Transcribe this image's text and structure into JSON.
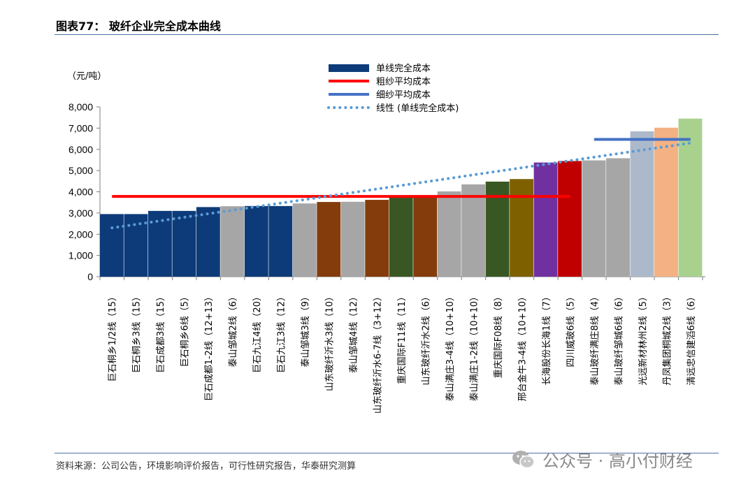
{
  "figure": {
    "title": "图表77： 玻纤企业完全成本曲线",
    "source": "资料来源：公司公告，环境影响评价报告，可行性研究报告，华泰研究测算",
    "watermark": "公众号 · 高小付财经"
  },
  "chart_data": {
    "type": "bar",
    "title": "玻纤企业完全成本曲线",
    "unit_label": "（元/吨）",
    "ylim": [
      0,
      8000
    ],
    "yticks": [
      "0",
      "1,000",
      "2,000",
      "3,000",
      "4,000",
      "5,000",
      "6,000",
      "7,000",
      "8,000"
    ],
    "legend": {
      "position": "top-center",
      "entries": [
        {
          "label": "单线完全成本",
          "style": "bar",
          "color": "#0d3b7a"
        },
        {
          "label": "粗纱平均成本",
          "style": "line",
          "color": "#ff0000"
        },
        {
          "label": "细纱平均成本",
          "style": "line",
          "color": "#4472c4"
        },
        {
          "label": "线性 (单线完全成本)",
          "style": "dotted",
          "color": "#5b9bd5"
        }
      ]
    },
    "categories": [
      "巨石桐乡1/2线（15）",
      "巨石桐乡3线（15）",
      "巨石成都3线（15）",
      "巨石桐乡6线（5）",
      "巨石成都1-2线（12+13）",
      "泰山邹城2线（6）",
      "巨石九江4线（20）",
      "巨石九江3线（12）",
      "泰山邹城3线（9）",
      "山东玻纤沂水3线（10）",
      "泰山邹城4线（12）",
      "山东玻纤沂水6-7线（3+12）",
      "重庆国际F11线（11）",
      "山东玻纤沂水2线（6）",
      "泰山满庄3-4线（10+10）",
      "泰山满庄1-2线（10+10）",
      "重庆国际F08线（8）",
      "邢台金牛3-4线（10+10）",
      "长海股份长海1线（7）",
      "四川威玻6线（5）",
      "泰山玻纤满庄8线（4）",
      "泰山玻纤邹城6线（6）",
      "光远新材林州2线（5）",
      "丹凤集团桐城2线（3）",
      "清远忠信建滔6线（6）"
    ],
    "capacity": [
      15,
      15,
      15,
      5,
      25,
      6,
      20,
      12,
      9,
      10,
      12,
      15,
      11,
      6,
      20,
      20,
      8,
      20,
      7,
      5,
      4,
      6,
      5,
      3,
      6
    ],
    "values": [
      2950,
      2950,
      3100,
      3100,
      3280,
      3320,
      3330,
      3330,
      3450,
      3520,
      3530,
      3620,
      3800,
      3820,
      4020,
      4350,
      4480,
      4600,
      5380,
      5450,
      5480,
      5580,
      6850,
      7020,
      7450
    ],
    "colors": [
      "#0d3b7a",
      "#0d3b7a",
      "#0d3b7a",
      "#0d3b7a",
      "#0d3b7a",
      "#a6a6a6",
      "#0d3b7a",
      "#0d3b7a",
      "#a6a6a6",
      "#843c0c",
      "#a6a6a6",
      "#843c0c",
      "#385723",
      "#843c0c",
      "#a6a6a6",
      "#a6a6a6",
      "#385723",
      "#7f6000",
      "#7030a0",
      "#c00000",
      "#a6a6a6",
      "#a6a6a6",
      "#acb9ca",
      "#f4b183",
      "#a9d18e"
    ],
    "reference_lines": [
      {
        "name": "粗纱平均成本",
        "value": 3780,
        "from_index": 0,
        "to_index": 19,
        "color": "#ff0000"
      },
      {
        "name": "细纱平均成本",
        "value": 6470,
        "from_index": 20,
        "to_index": 24,
        "color": "#4472c4"
      }
    ],
    "trendline": {
      "name": "线性 (单线完全成本)",
      "start": 2300,
      "end": 6300,
      "color": "#5b9bd5"
    }
  }
}
